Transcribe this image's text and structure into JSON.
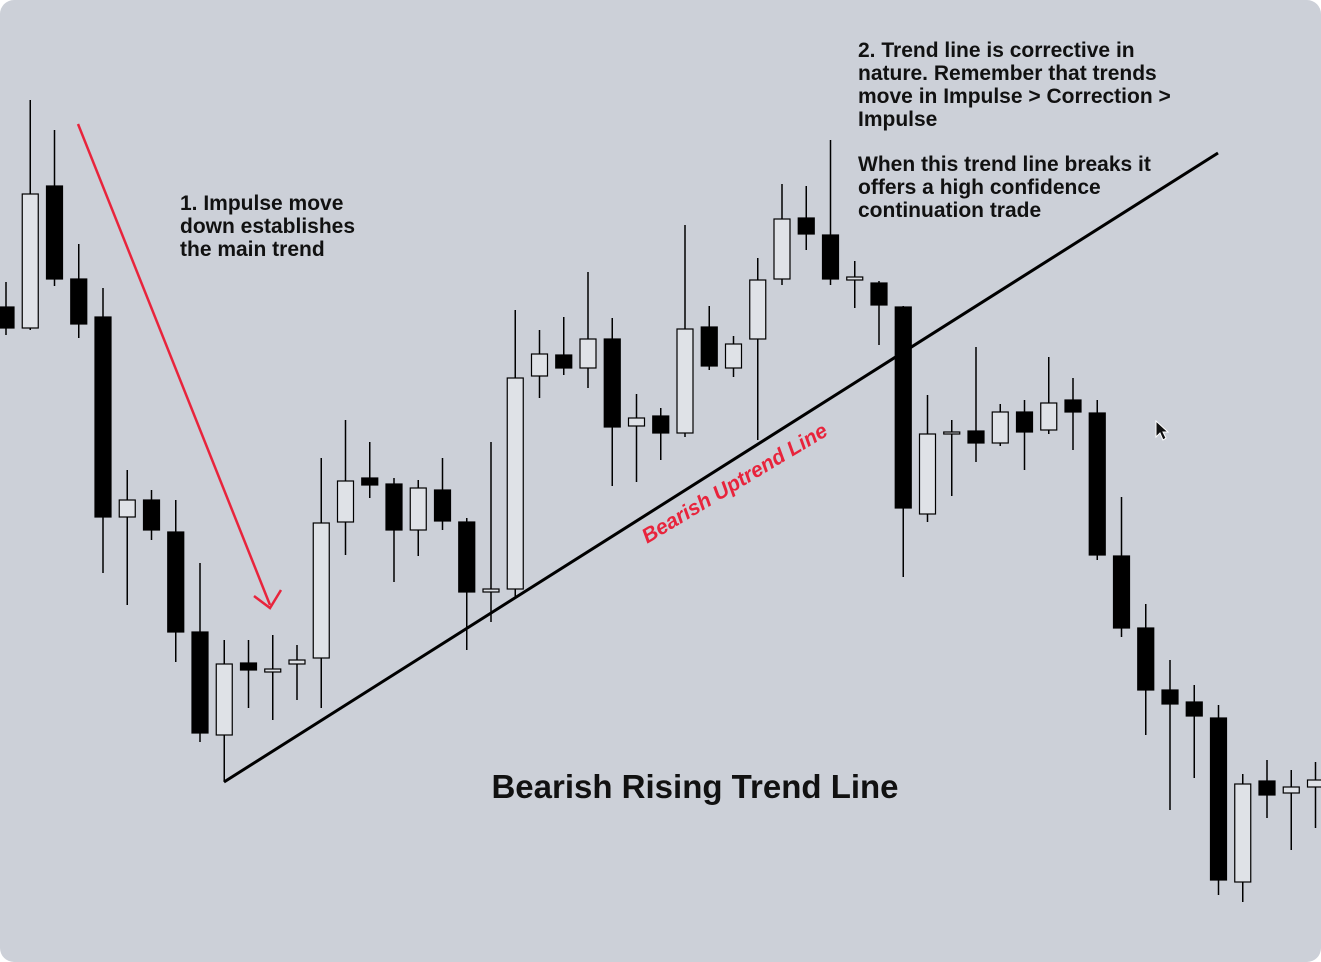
{
  "chart_data": {
    "type": "candlestick",
    "title": "Bearish Rising Trend Line",
    "annotations": [
      {
        "text": "1. Impulse move down establishes the main trend"
      },
      {
        "text": "2. Trend line is corrective in nature. Remember that trends move in Impulse > Correction > Impulse"
      },
      {
        "text": "When this trend line breaks it offers a high confidence continuation trade"
      },
      {
        "text": "Bearish Uptrend Line"
      }
    ],
    "up_color": "#dfe2e7",
    "down_color": "#000000",
    "ylim": [
      0,
      962
    ],
    "open": [
      655,
      634,
      776,
      683,
      645,
      445,
      462,
      430,
      330,
      227,
      299,
      290,
      298,
      304,
      440,
      484,
      478,
      432,
      472,
      440,
      370,
      373,
      586,
      607,
      594,
      623,
      536,
      546,
      529,
      635,
      594,
      623,
      683,
      744,
      727,
      682,
      679,
      655,
      448,
      528,
      531,
      519,
      550,
      532,
      562,
      549,
      406,
      334,
      272,
      260,
      244,
      80,
      181,
      169,
      175
    ],
    "high": [
      680,
      862,
      832,
      718,
      674,
      492,
      472,
      462,
      399,
      322,
      322,
      327,
      317,
      504,
      542,
      520,
      484,
      482,
      504,
      444,
      520,
      652,
      632,
      645,
      690,
      644,
      568,
      554,
      737,
      656,
      626,
      704,
      778,
      776,
      822,
      701,
      681,
      656,
      567,
      542,
      615,
      558,
      562,
      605,
      584,
      562,
      465,
      358,
      302,
      277,
      257,
      188,
      202,
      192,
      200
    ],
    "low": [
      627,
      632,
      676,
      624,
      389,
      357,
      422,
      300,
      220,
      180,
      254,
      242,
      262,
      254,
      407,
      464,
      380,
      406,
      432,
      312,
      340,
      364,
      564,
      587,
      574,
      476,
      480,
      502,
      525,
      592,
      585,
      522,
      677,
      712,
      677,
      654,
      617,
      385,
      440,
      466,
      500,
      516,
      492,
      528,
      512,
      402,
      325,
      227,
      152,
      184,
      67,
      60,
      144,
      112,
      134
    ],
    "close": [
      634,
      768,
      683,
      638,
      445,
      462,
      432,
      330,
      229,
      298,
      292,
      293,
      302,
      439,
      481,
      477,
      432,
      474,
      441,
      370,
      373,
      584,
      608,
      594,
      623,
      535,
      544,
      529,
      633,
      596,
      618,
      682,
      743,
      728,
      683,
      685,
      657,
      454,
      528,
      530,
      519,
      550,
      530,
      559,
      550,
      407,
      334,
      272,
      258,
      246,
      82,
      178,
      167,
      175,
      182
    ]
  }
}
